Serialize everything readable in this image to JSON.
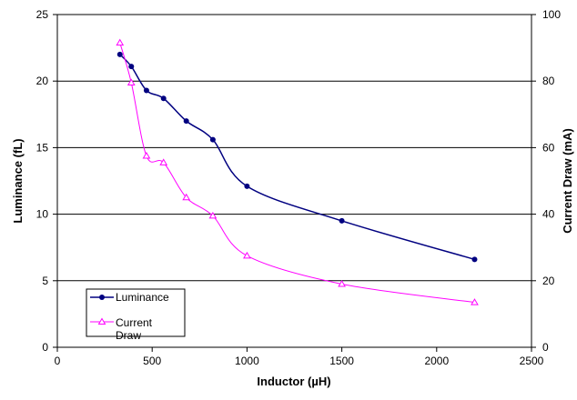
{
  "chart_data": {
    "type": "line",
    "title": "",
    "xlabel": "Inductor (µH)",
    "ylabel": "Luminance (fL)",
    "y2label": "Current Draw (mA)",
    "xlim": [
      0,
      2500
    ],
    "ylim": [
      0,
      25
    ],
    "y2lim": [
      0,
      100
    ],
    "x_ticks": [
      "0",
      "500",
      "1000",
      "1500",
      "2000",
      "2500"
    ],
    "y_ticks": [
      "0",
      "5",
      "10",
      "15",
      "20",
      "25"
    ],
    "y2_ticks": [
      "0",
      "20",
      "40",
      "60",
      "80",
      "100"
    ],
    "grid": "horizontal",
    "legend_position": "bottom-left",
    "series": [
      {
        "name": "Luminance",
        "axis": "left",
        "color": "#000080",
        "marker": "circle",
        "x": [
          330,
          390,
          470,
          560,
          680,
          820,
          1000,
          1500,
          2200
        ],
        "values": [
          22.0,
          21.1,
          19.3,
          18.7,
          17.0,
          15.6,
          12.1,
          9.5,
          6.6
        ]
      },
      {
        "name": "Current\nDraw",
        "axis": "right",
        "color": "#ff00ff",
        "marker": "triangle",
        "x": [
          330,
          390,
          470,
          560,
          680,
          820,
          1000,
          1500,
          2200
        ],
        "values": [
          91.5,
          79.5,
          57.5,
          55.5,
          45.0,
          39.5,
          27.5,
          19.0,
          13.5
        ]
      }
    ]
  }
}
